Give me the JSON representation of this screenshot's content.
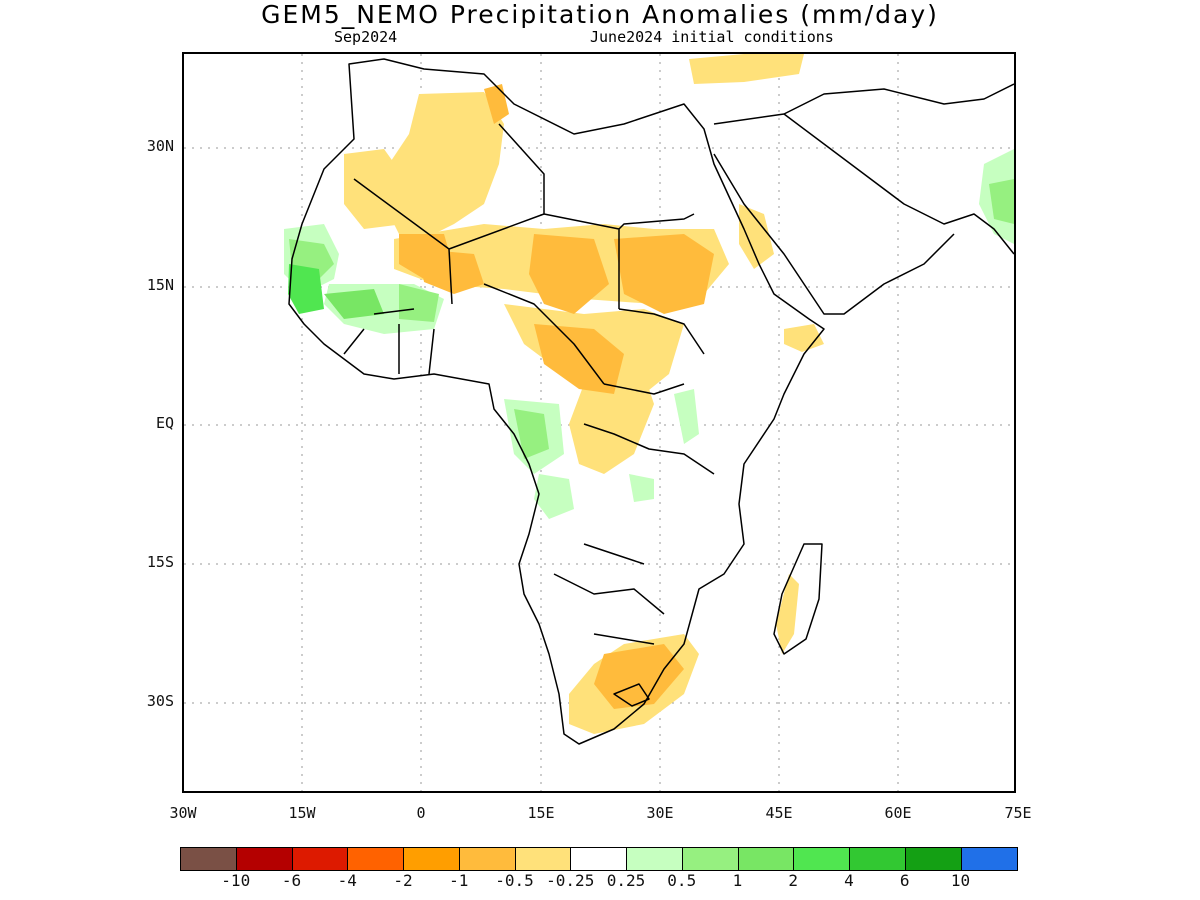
{
  "title": "GEM5_NEMO Precipitation Anomalies (mm/day)",
  "subtitle_left": "Sep2024",
  "subtitle_right": "June2024 initial conditions",
  "axes": {
    "lat_labels": [
      "30N",
      "15N",
      "EQ",
      "15S",
      "30S"
    ],
    "lon_labels": [
      "30W",
      "15W",
      "0",
      "15E",
      "30E",
      "45E",
      "60E",
      "75E"
    ]
  },
  "colorbar": {
    "colors": [
      "#7a5045",
      "#b40000",
      "#dd1a00",
      "#ff6200",
      "#ff9e00",
      "#ffbb3c",
      "#ffe17a",
      "#ffffff",
      "#c6ffc0",
      "#96f080",
      "#78e664",
      "#50e650",
      "#32c832",
      "#14a014",
      "#2070e8"
    ],
    "labels": [
      "-10",
      "-6",
      "-4",
      "-2",
      "-1",
      "-0.5",
      "-0.25",
      "0.25",
      "0.5",
      "1",
      "2",
      "4",
      "6",
      "10"
    ]
  }
}
